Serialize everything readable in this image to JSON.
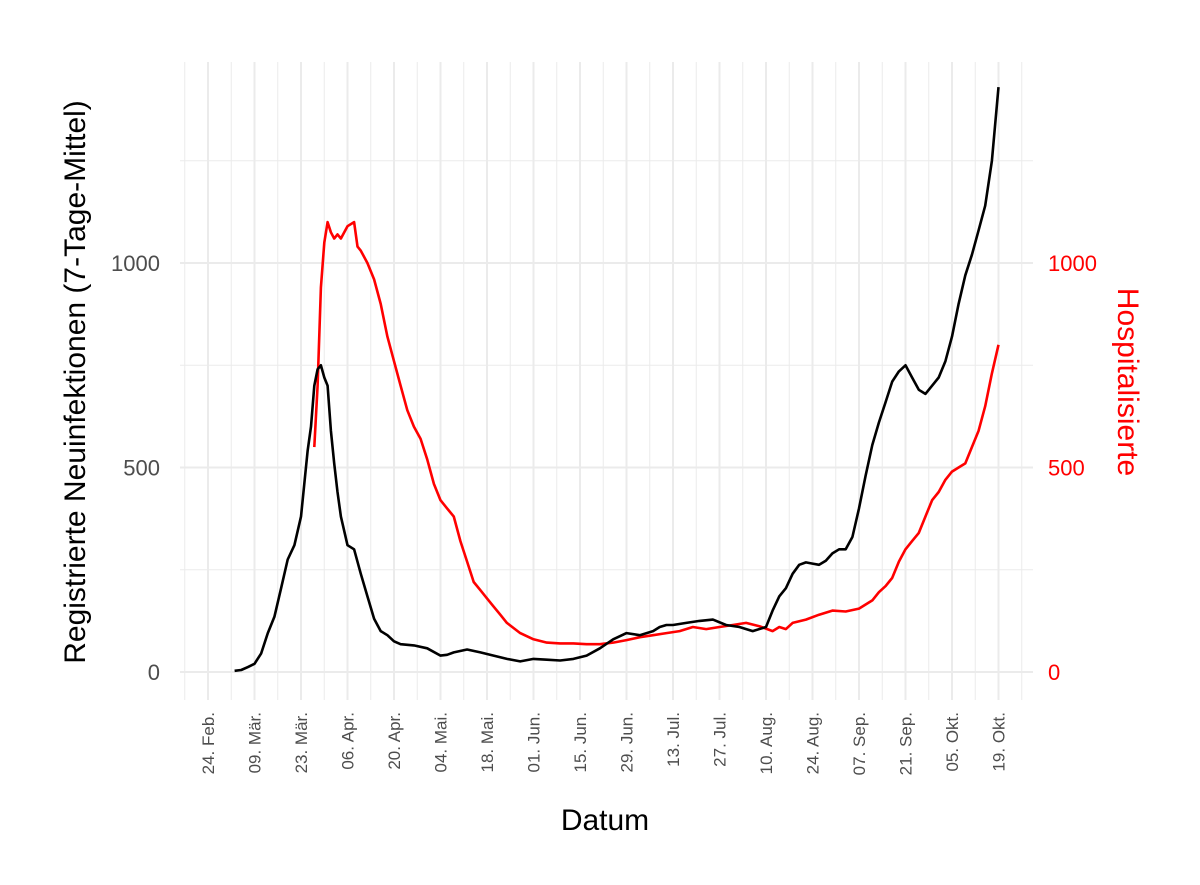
{
  "chart_data": {
    "type": "line",
    "xlabel": "Datum",
    "ylabel_left": "Registrierte Neuinfektionen (7-Tage-Mittel)",
    "ylabel_right": "Hospitalisierte",
    "ylim": [
      -75,
      1480
    ],
    "yticks_left": [
      "0",
      "500",
      "1000"
    ],
    "yticks_right": [
      "0",
      "500",
      "1000"
    ],
    "x_range_days": [
      -12,
      240
    ],
    "x_ticks": [
      {
        "day": 0,
        "label": "24. Feb."
      },
      {
        "day": 14,
        "label": "09. Mär."
      },
      {
        "day": 28,
        "label": "23. Mär."
      },
      {
        "day": 42,
        "label": "06. Apr."
      },
      {
        "day": 56,
        "label": "20. Apr."
      },
      {
        "day": 70,
        "label": "04. Mai."
      },
      {
        "day": 84,
        "label": "18. Mai."
      },
      {
        "day": 98,
        "label": "01. Jun."
      },
      {
        "day": 112,
        "label": "15. Jun."
      },
      {
        "day": 126,
        "label": "29. Jun."
      },
      {
        "day": 140,
        "label": "13. Jul."
      },
      {
        "day": 154,
        "label": "27. Jul."
      },
      {
        "day": 168,
        "label": "10. Aug."
      },
      {
        "day": 182,
        "label": "24. Aug."
      },
      {
        "day": 196,
        "label": "07. Sep."
      },
      {
        "day": 210,
        "label": "21. Sep."
      },
      {
        "day": 224,
        "label": "05. Okt."
      },
      {
        "day": 238,
        "label": "19. Okt."
      }
    ],
    "grid": true,
    "series": [
      {
        "name": "",
        "color": "#000000",
        "x": [
          8,
          10,
          12,
          14,
          16,
          18,
          20,
          22,
          24,
          26,
          28,
          29,
          30,
          31,
          32,
          33,
          34,
          35,
          36,
          37,
          38,
          39,
          40,
          42,
          44,
          46,
          48,
          50,
          52,
          54,
          56,
          58,
          62,
          66,
          70,
          72,
          74,
          78,
          82,
          86,
          90,
          94,
          98,
          102,
          106,
          110,
          114,
          118,
          122,
          126,
          130,
          134,
          136,
          138,
          140,
          144,
          148,
          152,
          156,
          160,
          164,
          168,
          170,
          172,
          174,
          176,
          178,
          180,
          182,
          184,
          186,
          188,
          190,
          192,
          194,
          196,
          198,
          200,
          202,
          204,
          206,
          208,
          210,
          212,
          214,
          216,
          218,
          220,
          222,
          224,
          226,
          228,
          230,
          232,
          234,
          236,
          238
        ],
        "y": [
          3,
          5,
          12,
          20,
          45,
          95,
          135,
          205,
          275,
          310,
          380,
          460,
          540,
          600,
          700,
          740,
          750,
          720,
          700,
          590,
          510,
          440,
          380,
          310,
          300,
          240,
          185,
          130,
          100,
          90,
          75,
          68,
          65,
          58,
          40,
          42,
          48,
          55,
          48,
          40,
          32,
          26,
          32,
          30,
          28,
          32,
          40,
          58,
          80,
          95,
          90,
          100,
          110,
          115,
          115,
          120,
          125,
          128,
          115,
          110,
          100,
          110,
          150,
          185,
          205,
          240,
          262,
          268,
          265,
          262,
          272,
          290,
          300,
          300,
          330,
          400,
          480,
          555,
          610,
          660,
          710,
          735,
          750,
          720,
          690,
          680,
          700,
          720,
          760,
          820,
          900,
          970,
          1020,
          1080,
          1140,
          1250,
          1430
        ]
      },
      {
        "name": "",
        "color": "#ff0000",
        "x": [
          32,
          33,
          34,
          35,
          36,
          37,
          38,
          39,
          40,
          42,
          44,
          45,
          46,
          48,
          50,
          52,
          54,
          56,
          58,
          60,
          62,
          64,
          66,
          68,
          70,
          72,
          74,
          76,
          78,
          80,
          82,
          84,
          86,
          88,
          90,
          94,
          98,
          102,
          106,
          110,
          114,
          118,
          122,
          126,
          130,
          134,
          138,
          142,
          146,
          150,
          154,
          158,
          162,
          166,
          170,
          172,
          174,
          176,
          180,
          184,
          188,
          192,
          196,
          200,
          202,
          204,
          206,
          208,
          210,
          212,
          214,
          216,
          218,
          220,
          222,
          224,
          226,
          228,
          230,
          232,
          234,
          236,
          238
        ],
        "y": [
          550,
          700,
          940,
          1050,
          1100,
          1075,
          1060,
          1070,
          1060,
          1090,
          1100,
          1040,
          1030,
          1000,
          960,
          900,
          820,
          760,
          700,
          640,
          600,
          570,
          520,
          460,
          420,
          400,
          380,
          320,
          270,
          220,
          200,
          180,
          160,
          140,
          120,
          95,
          80,
          72,
          70,
          70,
          68,
          68,
          72,
          78,
          85,
          90,
          95,
          100,
          110,
          105,
          110,
          115,
          120,
          112,
          100,
          110,
          105,
          120,
          128,
          140,
          150,
          148,
          155,
          175,
          195,
          210,
          230,
          270,
          300,
          320,
          340,
          380,
          420,
          440,
          470,
          490,
          500,
          510,
          550,
          590,
          650,
          730,
          800
        ]
      }
    ]
  }
}
